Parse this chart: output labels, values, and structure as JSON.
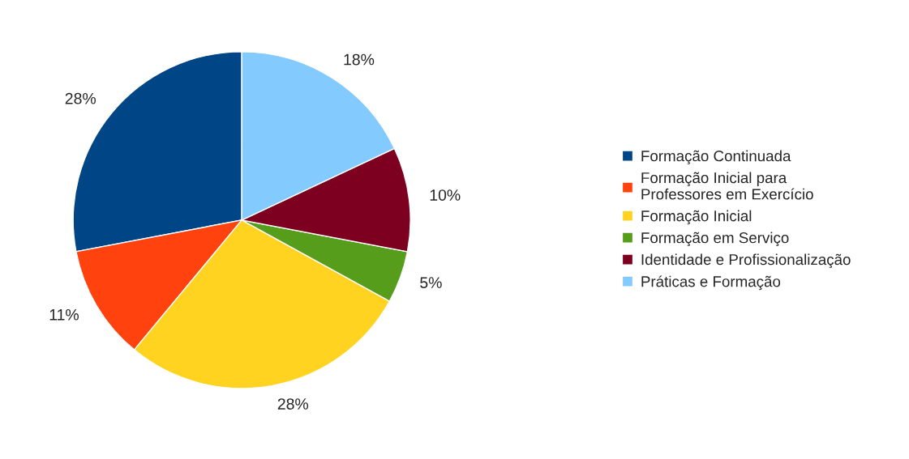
{
  "chart_data": {
    "type": "pie",
    "categories": [
      "Formação Continuada",
      "Formação Inicial para\nProfessores em Exercício",
      "Formação Inicial",
      "Formação em Serviço",
      "Identidade e Profissionalização",
      "Práticas e Formação"
    ],
    "values": [
      28,
      11,
      28,
      5,
      10,
      18
    ],
    "value_labels": [
      "28%",
      "11%",
      "28%",
      "5%",
      "10%",
      "18%"
    ],
    "colors": [
      "#004586",
      "#ff420e",
      "#ffd320",
      "#579d1c",
      "#7e0021",
      "#83caff"
    ],
    "legend": "right"
  }
}
